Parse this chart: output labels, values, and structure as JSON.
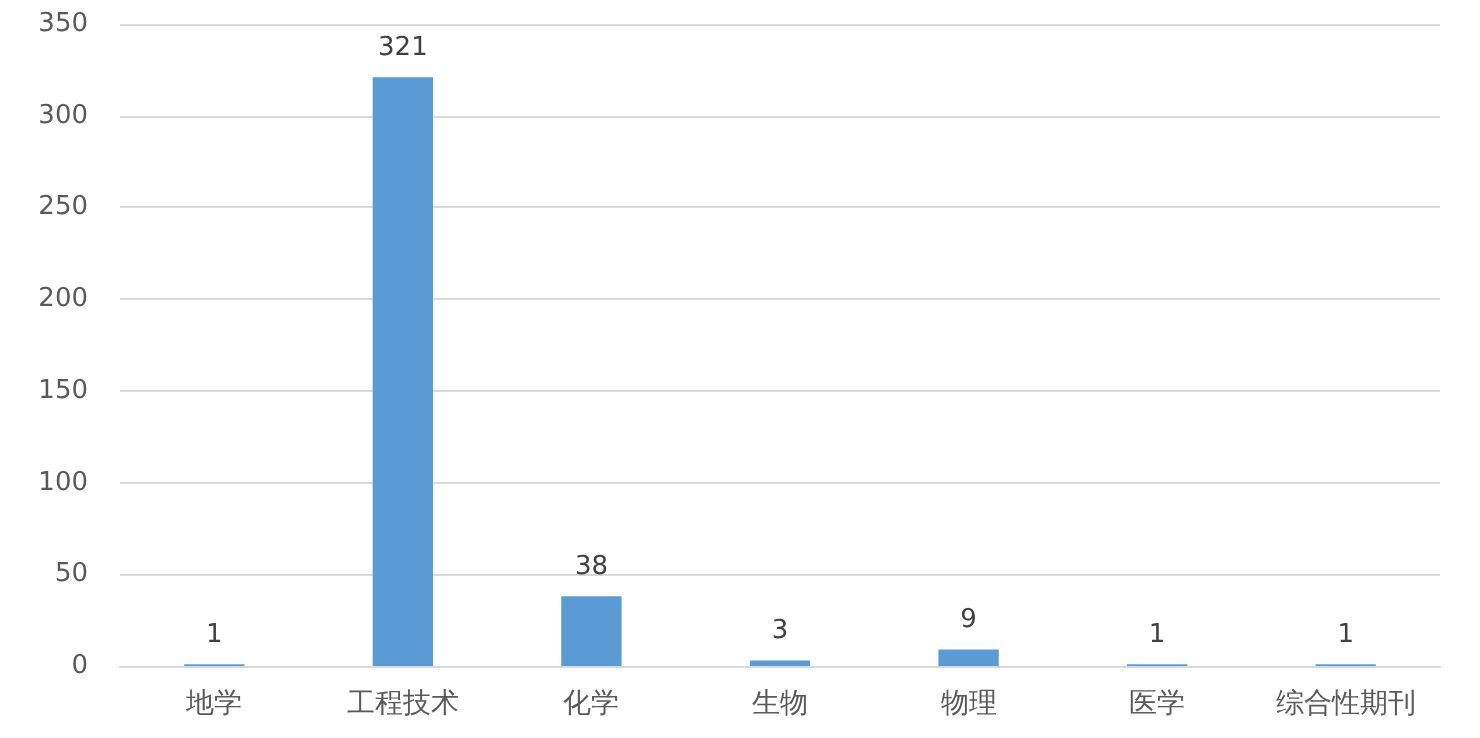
{
  "chart_data": {
    "type": "bar",
    "categories": [
      "地学",
      "工程技术",
      "化学",
      "生物",
      "物理",
      "医学",
      "综合性期刊"
    ],
    "values": [
      1,
      321,
      38,
      3,
      9,
      1,
      1
    ],
    "color": "#5b9bd5",
    "ylim": [
      0,
      350
    ],
    "yticks": [
      0,
      50,
      100,
      150,
      200,
      250,
      300,
      350
    ],
    "grid": "y",
    "data_labels": true
  }
}
